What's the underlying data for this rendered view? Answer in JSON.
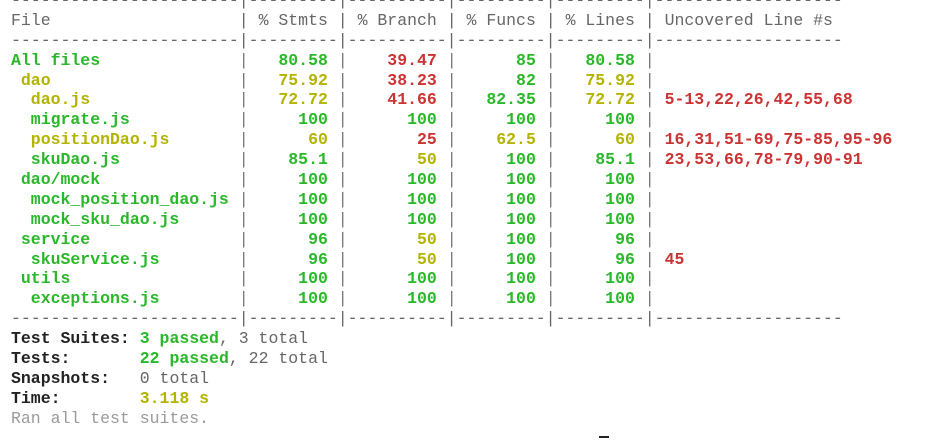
{
  "coverage": {
    "separator_line": "-----------------------|---------|----------|---------|---------|-------------------",
    "header": {
      "file": "File",
      "stmts": "% Stmts",
      "branch": "% Branch",
      "funcs": "% Funcs",
      "lines": "% Lines",
      "uncovered": "Uncovered Line #s"
    },
    "rows": [
      {
        "file": "All files",
        "indent": 0,
        "stmts": "80.58",
        "branch": "39.47",
        "funcs": "85",
        "lines": "80.58",
        "uncovered": ""
      },
      {
        "file": "dao",
        "indent": 1,
        "stmts": "75.92",
        "branch": "38.23",
        "funcs": "82",
        "lines": "75.92",
        "uncovered": ""
      },
      {
        "file": "dao.js",
        "indent": 2,
        "stmts": "72.72",
        "branch": "41.66",
        "funcs": "82.35",
        "lines": "72.72",
        "uncovered": "5-13,22,26,42,55,68"
      },
      {
        "file": "migrate.js",
        "indent": 2,
        "stmts": "100",
        "branch": "100",
        "funcs": "100",
        "lines": "100",
        "uncovered": ""
      },
      {
        "file": "positionDao.js",
        "indent": 2,
        "stmts": "60",
        "branch": "25",
        "funcs": "62.5",
        "lines": "60",
        "uncovered": "16,31,51-69,75-85,95-96"
      },
      {
        "file": "skuDao.js",
        "indent": 2,
        "stmts": "85.1",
        "branch": "50",
        "funcs": "100",
        "lines": "85.1",
        "uncovered": "23,53,66,78-79,90-91"
      },
      {
        "file": "dao/mock",
        "indent": 1,
        "stmts": "100",
        "branch": "100",
        "funcs": "100",
        "lines": "100",
        "uncovered": ""
      },
      {
        "file": "mock_position_dao.js",
        "indent": 2,
        "stmts": "100",
        "branch": "100",
        "funcs": "100",
        "lines": "100",
        "uncovered": ""
      },
      {
        "file": "mock_sku_dao.js",
        "indent": 2,
        "stmts": "100",
        "branch": "100",
        "funcs": "100",
        "lines": "100",
        "uncovered": ""
      },
      {
        "file": "service",
        "indent": 1,
        "stmts": "96",
        "branch": "50",
        "funcs": "100",
        "lines": "96",
        "uncovered": ""
      },
      {
        "file": "skuService.js",
        "indent": 2,
        "stmts": "96",
        "branch": "50",
        "funcs": "100",
        "lines": "96",
        "uncovered": "45"
      },
      {
        "file": "utils",
        "indent": 1,
        "stmts": "100",
        "branch": "100",
        "funcs": "100",
        "lines": "100",
        "uncovered": ""
      },
      {
        "file": "exceptions.js",
        "indent": 2,
        "stmts": "100",
        "branch": "100",
        "funcs": "100",
        "lines": "100",
        "uncovered": ""
      }
    ]
  },
  "summary": {
    "suites_label": "Test Suites: ",
    "suites_passed": "3 passed",
    "suites_total": ", 3 total",
    "tests_label": "Tests:       ",
    "tests_passed": "22 passed",
    "tests_total": ", 22 total",
    "snapshots_label": "Snapshots:   ",
    "snapshots_value": "0 total",
    "time_label": "Time:        ",
    "time_value": "3.118 s",
    "ran_all": "Ran all test suites."
  },
  "colors": {
    "good": "#29b829",
    "medium": "#b3b300",
    "low": "#cc3333"
  }
}
